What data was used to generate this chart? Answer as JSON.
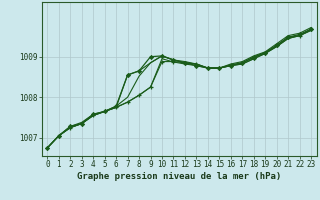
{
  "title": "Graphe pression niveau de la mer (hPa)",
  "background_color": "#cce8ec",
  "plot_bg_color": "#cce8ec",
  "grid_color": "#b0c8cc",
  "line_color": "#1a5c1a",
  "xlim": [
    -0.5,
    23.5
  ],
  "ylim": [
    1006.55,
    1010.35
  ],
  "xticks": [
    0,
    1,
    2,
    3,
    4,
    5,
    6,
    7,
    8,
    9,
    10,
    11,
    12,
    13,
    14,
    15,
    16,
    17,
    18,
    19,
    20,
    21,
    22,
    23
  ],
  "yticks": [
    1007,
    1008,
    1009
  ],
  "series1": [
    1006.75,
    1007.05,
    1007.25,
    1007.35,
    1007.55,
    1007.65,
    1007.75,
    1007.88,
    1008.05,
    1008.25,
    1008.95,
    1008.87,
    1008.82,
    1008.78,
    1008.72,
    1008.72,
    1008.78,
    1008.82,
    1008.95,
    1009.08,
    1009.25,
    1009.45,
    1009.52,
    1009.65
  ],
  "series2": [
    1006.85,
    1007.08,
    1007.28,
    1007.38,
    1007.58,
    1007.68,
    1007.78,
    1008.52,
    1008.62,
    1008.78,
    1009.0,
    1008.88,
    1008.88,
    1008.78,
    1008.72,
    1008.72,
    1008.82,
    1008.88,
    1009.02,
    1009.12,
    1009.32,
    1009.52,
    1009.58,
    1009.72
  ],
  "series3_x": [
    0,
    1,
    2,
    3,
    4,
    5,
    6,
    7,
    8,
    9,
    10,
    11,
    12,
    13,
    14,
    15,
    16,
    17,
    18,
    19,
    20,
    21,
    22,
    23
  ],
  "series3_y": [
    1006.75,
    1007.05,
    1007.28,
    1007.38,
    1007.58,
    1007.65,
    1007.78,
    1008.0,
    1008.52,
    1008.85,
    1009.02,
    1008.92,
    1008.85,
    1008.82,
    1008.72,
    1008.72,
    1008.78,
    1008.82,
    1008.95,
    1009.08,
    1009.25,
    1009.45,
    1009.52,
    1009.65
  ],
  "series4_x": [
    1,
    2,
    3,
    4,
    5,
    6,
    7,
    8,
    9,
    10,
    11,
    12,
    13,
    14,
    15,
    16,
    17,
    18,
    19,
    20,
    21,
    22,
    23
  ],
  "series4_y": [
    1007.05,
    1007.25,
    1007.35,
    1007.55,
    1007.65,
    1007.75,
    1008.55,
    1008.65,
    1008.85,
    1009.02,
    1008.92,
    1008.88,
    1008.82,
    1008.72,
    1008.72,
    1008.82,
    1008.88,
    1009.02,
    1009.12,
    1009.32,
    1009.52,
    1009.58,
    1009.72
  ],
  "xlabel_fontsize": 6.5,
  "tick_fontsize": 5.5
}
